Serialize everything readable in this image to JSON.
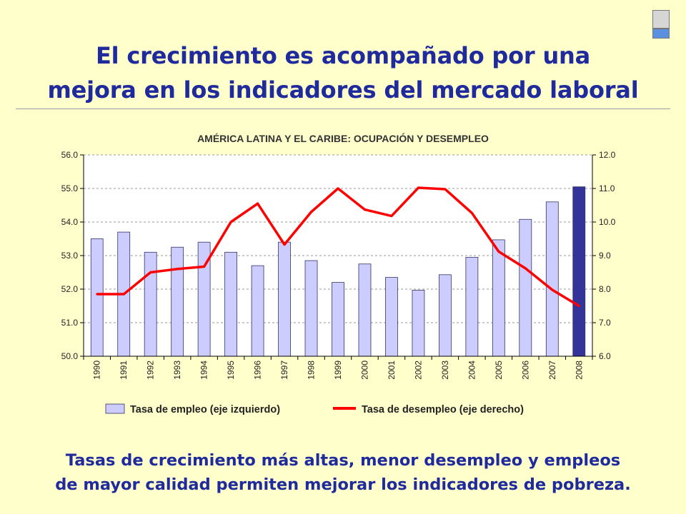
{
  "slide": {
    "title_line1": "El crecimiento es acompañado por una",
    "title_line2": "mejora en los indicadores del mercado laboral",
    "footer_line1": "Tasas de crecimiento más altas, menor desempleo y empleos",
    "footer_line2": "de mayor calidad permiten mejorar los indicadores de pobreza."
  },
  "chart_data": {
    "type": "bar",
    "title": "AMÉRICA LATINA Y EL CARIBE: OCUPACIÓN Y DESEMPLEO",
    "categories": [
      "1990",
      "1991",
      "1992",
      "1993",
      "1994",
      "1995",
      "1996",
      "1997",
      "1998",
      "1999",
      "2000",
      "2001",
      "2002",
      "2003",
      "2004",
      "2005",
      "2006",
      "2007",
      "2008"
    ],
    "series": [
      {
        "name": "Tasa de empleo (eje izquierdo)",
        "type": "bar",
        "axis": "left",
        "color": "#ccccff",
        "highlight_color": "#333399",
        "values": [
          53.5,
          53.7,
          53.1,
          53.25,
          53.4,
          53.1,
          52.7,
          53.4,
          52.85,
          52.2,
          52.75,
          52.35,
          51.97,
          52.43,
          52.95,
          53.47,
          54.08,
          54.6,
          55.05
        ]
      },
      {
        "name": "Tasa de desempleo (eje derecho)",
        "type": "line",
        "axis": "right",
        "color": "#ff0000",
        "values": [
          7.85,
          7.85,
          8.5,
          8.6,
          8.67,
          10.0,
          10.55,
          9.33,
          10.3,
          11.0,
          10.37,
          10.18,
          11.02,
          10.98,
          10.27,
          9.12,
          8.62,
          7.98,
          7.5
        ]
      }
    ],
    "ylim_left": [
      50.0,
      56.0
    ],
    "ylim_right": [
      6.0,
      12.0
    ],
    "yticks_left": [
      "50.0",
      "51.0",
      "52.0",
      "53.0",
      "54.0",
      "55.0",
      "56.0"
    ],
    "yticks_right": [
      "6.0",
      "7.0",
      "8.0",
      "9.0",
      "10.0",
      "11.0",
      "12.0"
    ],
    "grid": "horizontal-dashed",
    "legend_position": "bottom"
  }
}
